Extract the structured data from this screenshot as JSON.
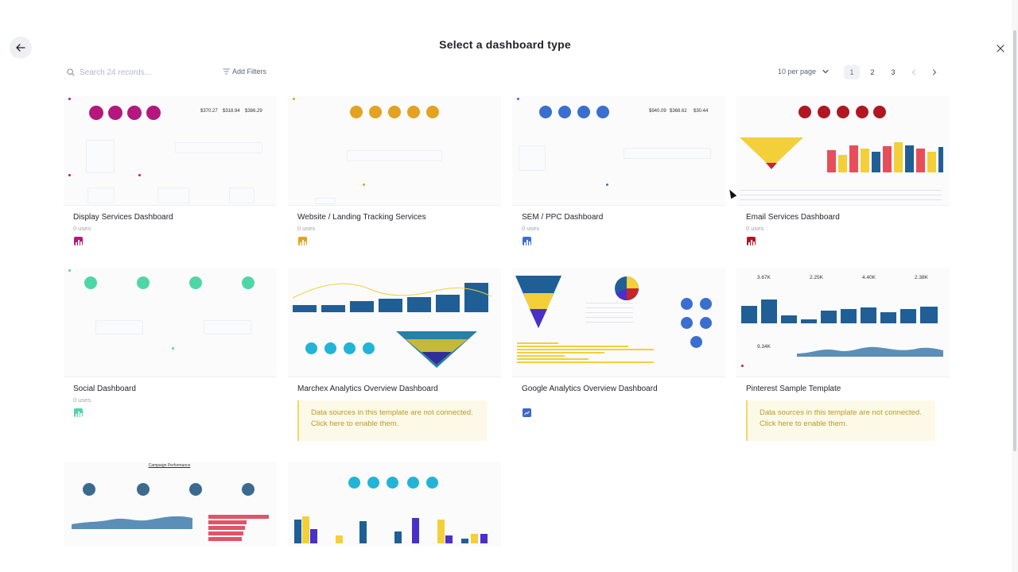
{
  "header": {
    "title": "Select a dashboard type"
  },
  "toolbar": {
    "search_placeholder": "Search 24 records...",
    "add_filters": "Add Filters",
    "per_page": "10 per page",
    "pages": [
      "1",
      "2",
      "3"
    ],
    "active_page": "1"
  },
  "cards": [
    {
      "name": "Display Services Dashboard",
      "uses": "0 uses",
      "badge_color": "#b5177f",
      "kpis": [
        "$370.27",
        "$318.94",
        "$386.29"
      ]
    },
    {
      "name": "Website / Landing Tracking Services",
      "uses": "0 uses",
      "badge_color": "#e3a221"
    },
    {
      "name": "SEM / PPC Dashboard",
      "uses": "0 uses",
      "badge_color": "#3a6fd0",
      "kpis": [
        "$940.09",
        "$368.62",
        "$30.44"
      ]
    },
    {
      "name": "Email Services Dashboard",
      "uses": "0 uses",
      "badge_color": "#b01722"
    },
    {
      "name": "Social Dashboard",
      "uses": "0 uses",
      "badge_color": "#4fd6a6"
    },
    {
      "name": "Marchex Analytics Overview Dashboard",
      "warning": [
        "Data sources in this template are not connected.",
        "Click here to enable them."
      ]
    },
    {
      "name": "Google Analytics Overview Dashboard",
      "badge_color": "#3b68c7"
    },
    {
      "name": "Pinterest Sample Template",
      "warning": [
        "Data sources in this template are not connected.",
        "Click here to enable them."
      ],
      "kpis": [
        "3.67K",
        "2.25K",
        "4.40K",
        "2.38K",
        "9.34K"
      ]
    },
    {
      "name": "Campaign Performance"
    },
    {
      "name": ""
    }
  ],
  "colors": {
    "magenta": "#b5177f",
    "amber": "#e3a221",
    "blue": "#3a6fd0",
    "crimson": "#b01722",
    "mint": "#4fd6a6",
    "navy": "#1f5f95",
    "teal": "#22b4d6",
    "yellow": "#f3cf3a",
    "purple": "#4b2fc9"
  }
}
